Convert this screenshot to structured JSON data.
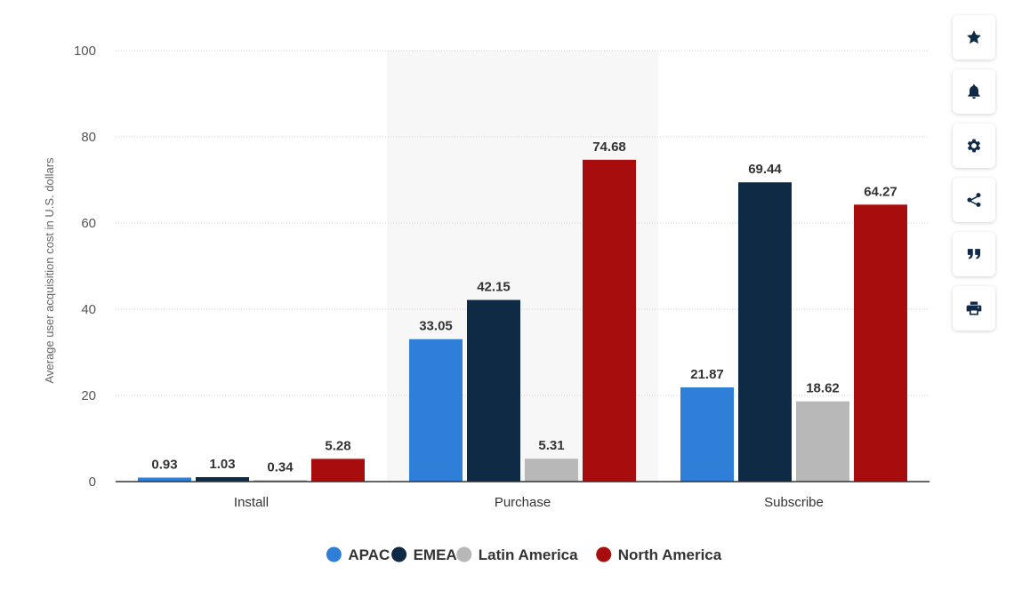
{
  "chart_data": {
    "type": "bar",
    "categories": [
      "Install",
      "Purchase",
      "Subscribe"
    ],
    "series": [
      {
        "name": "APAC",
        "color": "#2f7ed8",
        "values": [
          0.93,
          33.05,
          21.87
        ]
      },
      {
        "name": "EMEA",
        "color": "#0f2a44",
        "values": [
          1.03,
          42.15,
          69.44
        ]
      },
      {
        "name": "Latin America",
        "color": "#b8b8b8",
        "values": [
          0.34,
          5.31,
          18.62
        ]
      },
      {
        "name": "North America",
        "color": "#a80d0d",
        "values": [
          5.28,
          74.68,
          64.27
        ]
      }
    ],
    "ylabel": "Average user acquisition cost in U.S. dollars",
    "xlabel": "",
    "ylim": [
      0,
      100
    ],
    "yticks": [
      0,
      20,
      40,
      60,
      80,
      100
    ],
    "grid": true,
    "highlighted_category": "Purchase",
    "legend_position": "bottom"
  },
  "toolbar": {
    "buttons": [
      {
        "icon": "star-icon"
      },
      {
        "icon": "bell-icon"
      },
      {
        "icon": "gear-icon"
      },
      {
        "icon": "share-icon"
      },
      {
        "icon": "quote-icon"
      },
      {
        "icon": "print-icon"
      }
    ]
  }
}
